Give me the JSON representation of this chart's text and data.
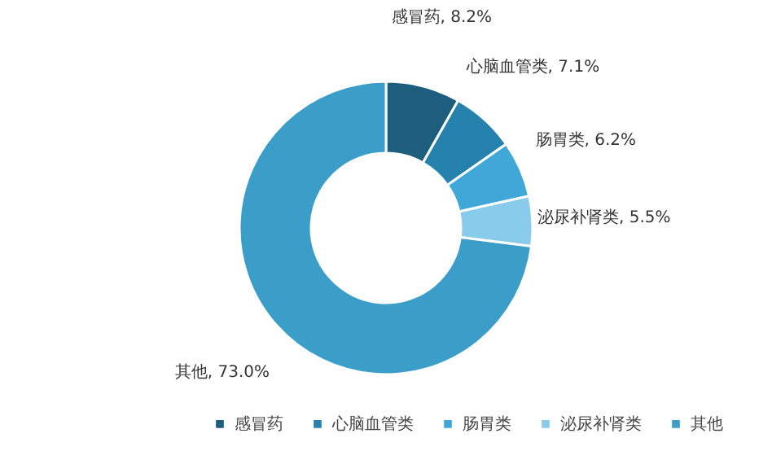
{
  "chart_data": {
    "type": "donut",
    "categories": [
      "感冒药",
      "心脑血管类",
      "肠胃类",
      "泌尿补肾类",
      "其他"
    ],
    "values": [
      8.2,
      7.1,
      6.2,
      5.5,
      73.0
    ],
    "value_labels": [
      "感冒药, 8.2%",
      "心脑血管类, 7.1%",
      "肠胃类, 6.2%",
      "泌尿补肾类, 5.5%",
      "其他, 73.0%"
    ],
    "colors": [
      "#1d5e7e",
      "#2482ad",
      "#3fa8d9",
      "#88cbea",
      "#3a9ec9"
    ],
    "legend": "bottom"
  }
}
